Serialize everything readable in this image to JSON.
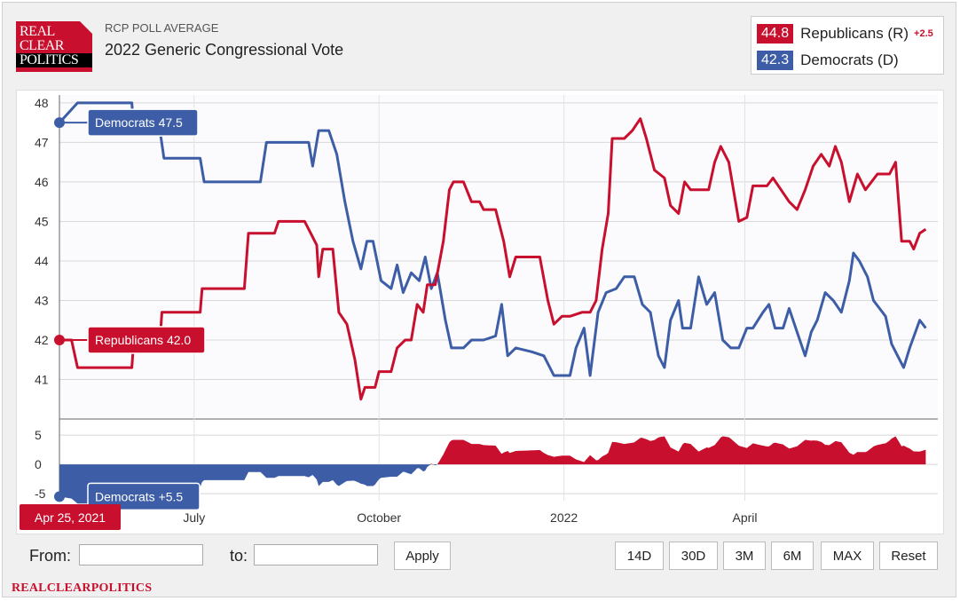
{
  "header": {
    "logo_lines": [
      "REAL",
      "CLEAR",
      "POLITICS"
    ],
    "kicker": "RCP POLL AVERAGE",
    "title": "2022 Generic Congressional Vote"
  },
  "legend": {
    "items": [
      {
        "value": "44.8",
        "name": "Republicans (R)",
        "delta": "+2.5",
        "color": "#c8102e"
      },
      {
        "value": "42.3",
        "name": "Democrats (D)",
        "delta": "",
        "color": "#3d5ea6"
      }
    ]
  },
  "chart_data": {
    "type": "line",
    "title": "2022 Generic Congressional Vote",
    "colors": {
      "republicans": "#c8102e",
      "democrats": "#3d5ea6"
    },
    "x_tick_labels": [
      "July",
      "October",
      "2022",
      "April"
    ],
    "x_tick_dates": [
      "2021-07-01",
      "2021-10-01",
      "2022-01-01",
      "2022-04-01"
    ],
    "x_range": [
      "2021-04-25",
      "2022-07-06"
    ],
    "y_ticks": [
      41,
      42,
      43,
      44,
      45,
      46,
      47,
      48
    ],
    "ylim": [
      40,
      48.2
    ],
    "spread_ticks": [
      5,
      0,
      -5
    ],
    "spread_range": [
      -6.2,
      7
    ],
    "grid": true,
    "hover": {
      "date_label": "Apr 25, 2021",
      "democrats_label": "Democrats 47.5",
      "republicans_label": "Republicans 42.0",
      "spread_label": "Democrats +5.5"
    },
    "series": [
      {
        "name": "Republicans",
        "key": "republicans",
        "points": [
          [
            "2021-04-25",
            42.0
          ],
          [
            "2021-05-01",
            42.0
          ],
          [
            "2021-05-04",
            41.3
          ],
          [
            "2021-05-31",
            41.3
          ],
          [
            "2021-06-01",
            42.0
          ],
          [
            "2021-06-14",
            42.0
          ],
          [
            "2021-06-15",
            42.7
          ],
          [
            "2021-07-04",
            42.7
          ],
          [
            "2021-07-05",
            43.3
          ],
          [
            "2021-07-26",
            43.3
          ],
          [
            "2021-07-28",
            44.7
          ],
          [
            "2021-08-10",
            44.7
          ],
          [
            "2021-08-12",
            45.0
          ],
          [
            "2021-08-25",
            45.0
          ],
          [
            "2021-08-31",
            44.4
          ],
          [
            "2021-09-01",
            43.6
          ],
          [
            "2021-09-03",
            44.3
          ],
          [
            "2021-09-08",
            44.3
          ],
          [
            "2021-09-11",
            42.7
          ],
          [
            "2021-09-15",
            42.4
          ],
          [
            "2021-09-19",
            41.5
          ],
          [
            "2021-09-22",
            40.5
          ],
          [
            "2021-09-24",
            40.8
          ],
          [
            "2021-09-29",
            40.8
          ],
          [
            "2021-10-01",
            41.2
          ],
          [
            "2021-10-07",
            41.2
          ],
          [
            "2021-10-10",
            41.8
          ],
          [
            "2021-10-14",
            42.0
          ],
          [
            "2021-10-17",
            42.0
          ],
          [
            "2021-10-20",
            42.9
          ],
          [
            "2021-10-23",
            42.7
          ],
          [
            "2021-10-25",
            43.4
          ],
          [
            "2021-10-29",
            43.4
          ],
          [
            "2021-11-02",
            44.5
          ],
          [
            "2021-11-05",
            45.8
          ],
          [
            "2021-11-07",
            46.0
          ],
          [
            "2021-11-12",
            46.0
          ],
          [
            "2021-11-16",
            45.5
          ],
          [
            "2021-11-20",
            45.5
          ],
          [
            "2021-11-22",
            45.3
          ],
          [
            "2021-11-28",
            45.3
          ],
          [
            "2021-12-02",
            44.5
          ],
          [
            "2021-12-05",
            43.6
          ],
          [
            "2021-12-08",
            44.1
          ],
          [
            "2021-12-14",
            44.1
          ],
          [
            "2021-12-20",
            44.1
          ],
          [
            "2021-12-24",
            43.0
          ],
          [
            "2021-12-27",
            42.4
          ],
          [
            "2021-12-31",
            42.6
          ],
          [
            "2022-01-04",
            42.6
          ],
          [
            "2022-01-10",
            42.7
          ],
          [
            "2022-01-14",
            42.7
          ],
          [
            "2022-01-17",
            43.0
          ],
          [
            "2022-01-20",
            44.3
          ],
          [
            "2022-01-23",
            45.2
          ],
          [
            "2022-01-25",
            47.1
          ],
          [
            "2022-01-31",
            47.1
          ],
          [
            "2022-02-04",
            47.3
          ],
          [
            "2022-02-08",
            47.6
          ],
          [
            "2022-02-11",
            47.1
          ],
          [
            "2022-02-15",
            46.3
          ],
          [
            "2022-02-20",
            46.1
          ],
          [
            "2022-02-23",
            45.4
          ],
          [
            "2022-02-27",
            45.2
          ],
          [
            "2022-03-02",
            46.0
          ],
          [
            "2022-03-05",
            45.8
          ],
          [
            "2022-03-14",
            45.8
          ],
          [
            "2022-03-17",
            46.5
          ],
          [
            "2022-03-20",
            46.9
          ],
          [
            "2022-03-24",
            46.5
          ],
          [
            "2022-03-29",
            45.0
          ],
          [
            "2022-04-02",
            45.1
          ],
          [
            "2022-04-05",
            45.9
          ],
          [
            "2022-04-12",
            45.9
          ],
          [
            "2022-04-15",
            46.1
          ],
          [
            "2022-04-19",
            45.8
          ],
          [
            "2022-04-23",
            45.5
          ],
          [
            "2022-04-27",
            45.3
          ],
          [
            "2022-05-01",
            45.8
          ],
          [
            "2022-05-05",
            46.4
          ],
          [
            "2022-05-09",
            46.7
          ],
          [
            "2022-05-13",
            46.4
          ],
          [
            "2022-05-16",
            46.9
          ],
          [
            "2022-05-19",
            46.5
          ],
          [
            "2022-05-23",
            45.5
          ],
          [
            "2022-05-27",
            46.2
          ],
          [
            "2022-05-31",
            45.8
          ],
          [
            "2022-06-06",
            46.2
          ],
          [
            "2022-06-12",
            46.2
          ],
          [
            "2022-06-15",
            46.5
          ],
          [
            "2022-06-18",
            44.5
          ],
          [
            "2022-06-22",
            44.5
          ],
          [
            "2022-06-24",
            44.3
          ],
          [
            "2022-06-27",
            44.7
          ],
          [
            "2022-06-30",
            44.8
          ]
        ]
      },
      {
        "name": "Democrats",
        "key": "democrats",
        "points": [
          [
            "2021-04-25",
            47.5
          ],
          [
            "2021-05-04",
            48.0
          ],
          [
            "2021-05-31",
            48.0
          ],
          [
            "2021-06-01",
            47.3
          ],
          [
            "2021-06-14",
            47.3
          ],
          [
            "2021-06-16",
            46.6
          ],
          [
            "2021-07-04",
            46.6
          ],
          [
            "2021-07-06",
            46.0
          ],
          [
            "2021-08-03",
            46.0
          ],
          [
            "2021-08-06",
            47.0
          ],
          [
            "2021-08-27",
            47.0
          ],
          [
            "2021-08-29",
            46.4
          ],
          [
            "2021-09-01",
            47.3
          ],
          [
            "2021-09-06",
            47.3
          ],
          [
            "2021-09-10",
            46.7
          ],
          [
            "2021-09-14",
            45.5
          ],
          [
            "2021-09-18",
            44.5
          ],
          [
            "2021-09-22",
            43.8
          ],
          [
            "2021-09-25",
            44.5
          ],
          [
            "2021-09-28",
            44.5
          ],
          [
            "2021-10-02",
            43.5
          ],
          [
            "2021-10-07",
            43.3
          ],
          [
            "2021-10-10",
            43.9
          ],
          [
            "2021-10-13",
            43.2
          ],
          [
            "2021-10-17",
            43.7
          ],
          [
            "2021-10-21",
            43.5
          ],
          [
            "2021-10-24",
            44.1
          ],
          [
            "2021-10-27",
            43.3
          ],
          [
            "2021-10-30",
            43.7
          ],
          [
            "2021-11-03",
            42.5
          ],
          [
            "2021-11-06",
            41.8
          ],
          [
            "2021-11-12",
            41.8
          ],
          [
            "2021-11-16",
            42.0
          ],
          [
            "2021-11-22",
            42.0
          ],
          [
            "2021-11-28",
            42.1
          ],
          [
            "2021-12-01",
            42.9
          ],
          [
            "2021-12-04",
            41.6
          ],
          [
            "2021-12-08",
            41.8
          ],
          [
            "2021-12-16",
            41.7
          ],
          [
            "2021-12-22",
            41.6
          ],
          [
            "2021-12-27",
            41.1
          ],
          [
            "2022-01-04",
            41.1
          ],
          [
            "2022-01-07",
            41.8
          ],
          [
            "2022-01-11",
            42.3
          ],
          [
            "2022-01-14",
            41.1
          ],
          [
            "2022-01-18",
            42.7
          ],
          [
            "2022-01-22",
            43.2
          ],
          [
            "2022-01-27",
            43.3
          ],
          [
            "2022-01-31",
            43.6
          ],
          [
            "2022-02-05",
            43.6
          ],
          [
            "2022-02-09",
            42.9
          ],
          [
            "2022-02-13",
            42.7
          ],
          [
            "2022-02-17",
            41.6
          ],
          [
            "2022-02-20",
            41.3
          ],
          [
            "2022-02-23",
            42.5
          ],
          [
            "2022-02-27",
            43.0
          ],
          [
            "2022-03-01",
            42.3
          ],
          [
            "2022-03-05",
            42.3
          ],
          [
            "2022-03-09",
            43.6
          ],
          [
            "2022-03-13",
            42.9
          ],
          [
            "2022-03-17",
            43.2
          ],
          [
            "2022-03-21",
            42.0
          ],
          [
            "2022-03-25",
            41.8
          ],
          [
            "2022-03-29",
            41.8
          ],
          [
            "2022-04-02",
            42.3
          ],
          [
            "2022-04-05",
            42.3
          ],
          [
            "2022-04-10",
            42.7
          ],
          [
            "2022-04-13",
            42.9
          ],
          [
            "2022-04-16",
            42.3
          ],
          [
            "2022-04-20",
            42.3
          ],
          [
            "2022-04-23",
            42.8
          ],
          [
            "2022-04-27",
            42.2
          ],
          [
            "2022-05-01",
            41.6
          ],
          [
            "2022-05-04",
            42.2
          ],
          [
            "2022-05-07",
            42.5
          ],
          [
            "2022-05-11",
            43.2
          ],
          [
            "2022-05-15",
            43.0
          ],
          [
            "2022-05-19",
            42.7
          ],
          [
            "2022-05-23",
            43.5
          ],
          [
            "2022-05-25",
            44.2
          ],
          [
            "2022-05-28",
            44.0
          ],
          [
            "2022-06-01",
            43.6
          ],
          [
            "2022-06-04",
            43.0
          ],
          [
            "2022-06-07",
            42.8
          ],
          [
            "2022-06-10",
            42.6
          ],
          [
            "2022-06-13",
            41.9
          ],
          [
            "2022-06-16",
            41.6
          ],
          [
            "2022-06-19",
            41.3
          ],
          [
            "2022-06-22",
            41.8
          ],
          [
            "2022-06-27",
            42.5
          ],
          [
            "2022-06-30",
            42.3
          ]
        ]
      }
    ]
  },
  "controls": {
    "from_label": "From:",
    "from_value": "",
    "to_label": "to:",
    "to_value": "",
    "apply_label": "Apply",
    "ranges": [
      "14D",
      "30D",
      "3M",
      "6M",
      "MAX"
    ],
    "reset_label": "Reset"
  },
  "footer": {
    "text": "REALCLEARPOLITICS"
  }
}
